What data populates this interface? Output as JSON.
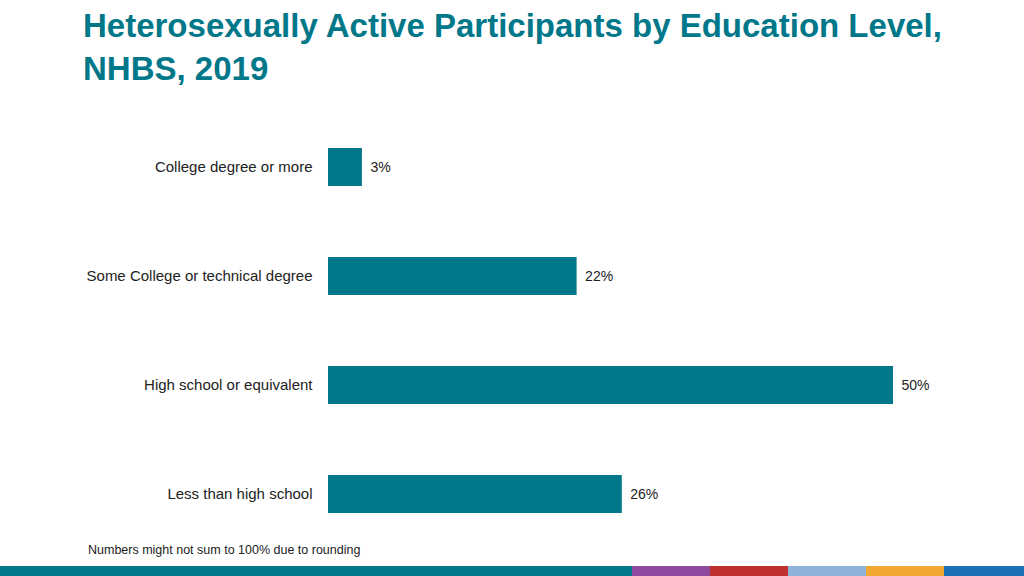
{
  "chart_data": {
    "type": "bar",
    "orientation": "horizontal",
    "title": "Heterosexually Active Participants by Education Level, NHBS, 2019",
    "categories": [
      "College degree or more",
      "Some College or technical degree",
      "High school or equivalent",
      "Less than high school"
    ],
    "values": [
      3,
      22,
      50,
      26
    ],
    "value_labels": [
      "3%",
      "22%",
      "50%",
      "26%"
    ],
    "data_labels": true,
    "tick_labels": "y",
    "grid": false,
    "color": "#00788A",
    "caption": "Numbers might not sum to 100% due to rounding"
  }
}
